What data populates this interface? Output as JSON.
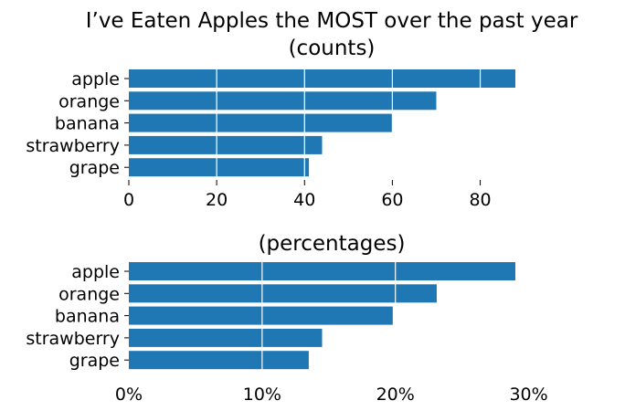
{
  "chart_data": [
    {
      "type": "bar",
      "orientation": "horizontal",
      "title": "I’ve Eaten Apples the MOST over the past year",
      "subtitle": "(counts)",
      "categories": [
        "apple",
        "orange",
        "banana",
        "strawberry",
        "grape"
      ],
      "values": [
        88,
        70,
        60,
        44,
        41
      ],
      "xlim": [
        0,
        88
      ],
      "xticks": [
        0,
        20,
        40,
        60,
        80
      ],
      "xtick_labels": [
        "0",
        "20",
        "40",
        "60",
        "80"
      ],
      "grid": true,
      "color": "#1f77b4"
    },
    {
      "type": "bar",
      "orientation": "horizontal",
      "subtitle": "(percentages)",
      "categories": [
        "apple",
        "orange",
        "banana",
        "strawberry",
        "grape"
      ],
      "values": [
        29.0,
        23.1,
        19.8,
        14.5,
        13.5
      ],
      "xlim": [
        0,
        29.0
      ],
      "xticks": [
        0,
        10,
        20,
        30
      ],
      "xtick_labels": [
        "0%",
        "10%",
        "20%",
        "30%"
      ],
      "grid": true,
      "color": "#1f77b4"
    }
  ]
}
